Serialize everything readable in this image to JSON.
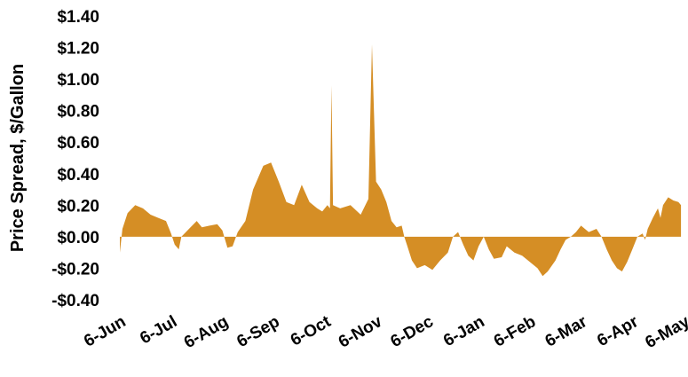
{
  "chart_data": {
    "type": "area",
    "title": "",
    "xlabel": "",
    "ylabel": "Price Spread, $/Gallon",
    "ylim": [
      -0.4,
      1.4
    ],
    "y_ticks": [
      1.4,
      1.2,
      1.0,
      0.8,
      0.6,
      0.4,
      0.2,
      0.0,
      -0.2,
      -0.4
    ],
    "y_tick_labels": [
      "$1.40",
      "$1.20",
      "$1.00",
      "$0.80",
      "$0.60",
      "$0.40",
      "$0.20",
      "$0.00",
      "-$0.20",
      "-$0.40"
    ],
    "x_tick_labels": [
      "6-Jun",
      "6-Jul",
      "6-Aug",
      "6-Sep",
      "6-Oct",
      "6-Nov",
      "6-Dec",
      "6-Jan",
      "6-Feb",
      "6-Mar",
      "6-Apr",
      "6-May",
      "6-Jun"
    ],
    "x_axis_unit": "months from 6-Jun",
    "grid": false,
    "legend": "none",
    "fill_color": "#D58E25",
    "series": [
      {
        "values": [
          [
            0.0,
            -0.1
          ],
          [
            0.05,
            0.05
          ],
          [
            0.15,
            0.15
          ],
          [
            0.3,
            0.2
          ],
          [
            0.45,
            0.18
          ],
          [
            0.6,
            0.14
          ],
          [
            0.75,
            0.12
          ],
          [
            0.9,
            0.1
          ],
          [
            1.0,
            0.02
          ],
          [
            1.07,
            -0.05
          ],
          [
            1.15,
            -0.08
          ],
          [
            1.2,
            0.0
          ],
          [
            1.35,
            0.05
          ],
          [
            1.5,
            0.1
          ],
          [
            1.6,
            0.06
          ],
          [
            1.75,
            0.07
          ],
          [
            1.9,
            0.08
          ],
          [
            2.0,
            0.04
          ],
          [
            2.1,
            -0.07
          ],
          [
            2.2,
            -0.06
          ],
          [
            2.3,
            0.03
          ],
          [
            2.45,
            0.1
          ],
          [
            2.6,
            0.3
          ],
          [
            2.8,
            0.45
          ],
          [
            2.95,
            0.47
          ],
          [
            3.1,
            0.35
          ],
          [
            3.25,
            0.22
          ],
          [
            3.4,
            0.2
          ],
          [
            3.55,
            0.33
          ],
          [
            3.7,
            0.22
          ],
          [
            3.85,
            0.18
          ],
          [
            3.95,
            0.16
          ],
          [
            4.05,
            0.2
          ],
          [
            4.1,
            0.18
          ],
          [
            4.13,
            0.96
          ],
          [
            4.16,
            0.2
          ],
          [
            4.3,
            0.18
          ],
          [
            4.5,
            0.2
          ],
          [
            4.7,
            0.14
          ],
          [
            4.85,
            0.24
          ],
          [
            4.92,
            1.22
          ],
          [
            5.0,
            0.35
          ],
          [
            5.1,
            0.3
          ],
          [
            5.2,
            0.22
          ],
          [
            5.3,
            0.1
          ],
          [
            5.4,
            0.06
          ],
          [
            5.5,
            0.07
          ],
          [
            5.55,
            0.0
          ],
          [
            5.6,
            -0.05
          ],
          [
            5.7,
            -0.15
          ],
          [
            5.8,
            -0.2
          ],
          [
            5.95,
            -0.18
          ],
          [
            6.1,
            -0.21
          ],
          [
            6.25,
            -0.15
          ],
          [
            6.4,
            -0.1
          ],
          [
            6.5,
            0.0
          ],
          [
            6.6,
            0.03
          ],
          [
            6.7,
            -0.05
          ],
          [
            6.8,
            -0.12
          ],
          [
            6.9,
            -0.15
          ],
          [
            7.0,
            -0.06
          ],
          [
            7.1,
            0.0
          ],
          [
            7.2,
            -0.08
          ],
          [
            7.3,
            -0.14
          ],
          [
            7.45,
            -0.13
          ],
          [
            7.55,
            -0.06
          ],
          [
            7.7,
            -0.1
          ],
          [
            7.85,
            -0.12
          ],
          [
            8.0,
            -0.16
          ],
          [
            8.15,
            -0.2
          ],
          [
            8.25,
            -0.25
          ],
          [
            8.35,
            -0.22
          ],
          [
            8.5,
            -0.15
          ],
          [
            8.6,
            -0.08
          ],
          [
            8.7,
            -0.02
          ],
          [
            8.8,
            0.0
          ],
          [
            8.9,
            0.03
          ],
          [
            9.0,
            0.07
          ],
          [
            9.15,
            0.03
          ],
          [
            9.3,
            0.05
          ],
          [
            9.4,
            0.0
          ],
          [
            9.5,
            -0.08
          ],
          [
            9.6,
            -0.15
          ],
          [
            9.7,
            -0.2
          ],
          [
            9.8,
            -0.22
          ],
          [
            9.9,
            -0.16
          ],
          [
            10.0,
            -0.08
          ],
          [
            10.1,
            0.0
          ],
          [
            10.2,
            0.02
          ],
          [
            10.25,
            -0.02
          ],
          [
            10.3,
            0.05
          ],
          [
            10.4,
            0.12
          ],
          [
            10.5,
            0.18
          ],
          [
            10.55,
            0.12
          ],
          [
            10.6,
            0.2
          ],
          [
            10.7,
            0.25
          ],
          [
            10.8,
            0.23
          ],
          [
            10.9,
            0.22
          ],
          [
            10.95,
            0.2
          ]
        ]
      }
    ]
  }
}
